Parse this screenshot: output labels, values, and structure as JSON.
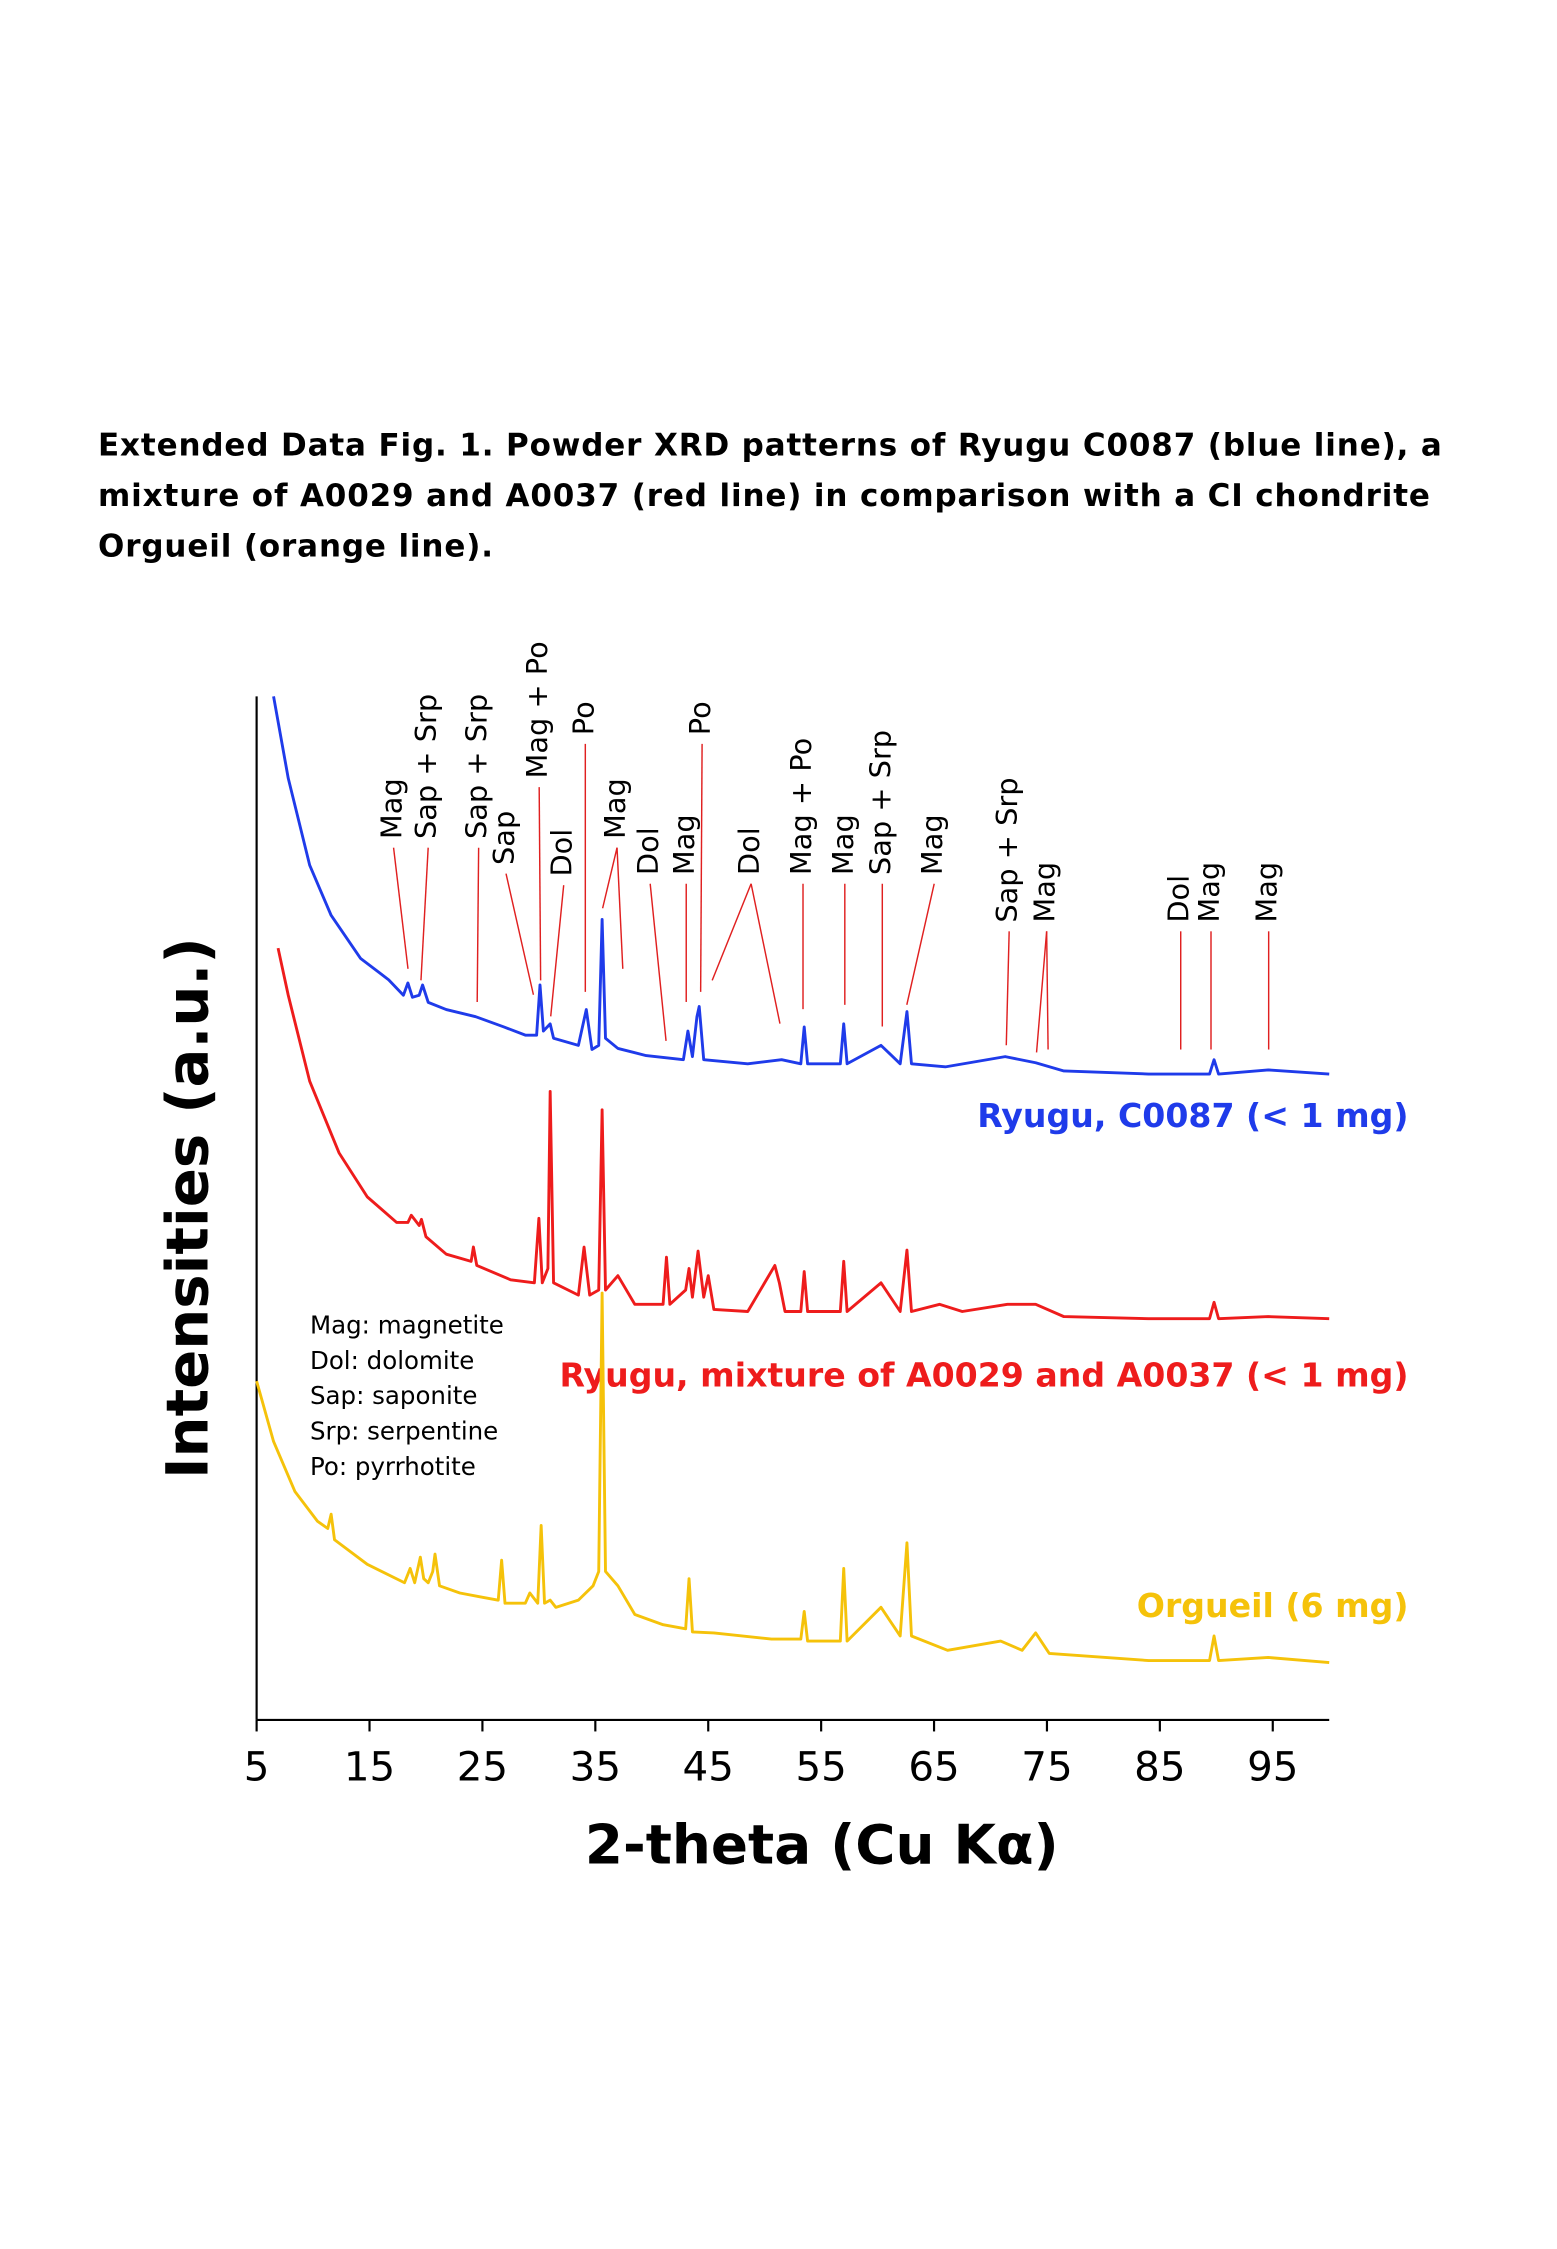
{
  "chart_data": {
    "type": "line",
    "caption_lines": [
      "Extended Data Fig. 1. Powder XRD patterns of Ryugu C0087 (blue line), a",
      "mixture of A0029 and A0037 (red line) in comparison with a CI chondrite",
      "Orgueil (orange line)."
    ],
    "x_label": "2-theta (Cu Kα)",
    "y_label": "Intensities (a.u.)",
    "xlim": [
      5,
      100
    ],
    "xticks": [
      5,
      15,
      25,
      35,
      45,
      55,
      65,
      75,
      85,
      95
    ],
    "ylim": [
      0,
      100
    ],
    "series": [
      {
        "name": "Ryugu, C0087 (< 1 mg)",
        "color": "#1f3bea",
        "x": [
          6.5,
          7.8,
          9.7,
          11.6,
          14.2,
          16.7,
          18.0,
          18.4,
          18.8,
          19.4,
          19.7,
          20.2,
          21.8,
          24.4,
          26.9,
          28.8,
          29.8,
          30.1,
          30.4,
          31.0,
          31.3,
          33.5,
          34.2,
          34.7,
          35.3,
          35.6,
          35.9,
          37.0,
          39.5,
          42.8,
          43.2,
          43.6,
          44.0,
          44.2,
          44.6,
          48.5,
          51.5,
          53.2,
          53.5,
          53.8,
          56.7,
          57.0,
          57.3,
          60.3,
          62.0,
          62.6,
          63.0,
          66.0,
          71.3,
          74.0,
          76.5,
          84.0,
          89.4,
          89.8,
          90.2,
          94.6,
          100.0
        ],
        "values": [
          100,
          92,
          83.5,
          78.6,
          74.4,
          72.3,
          70.8,
          72,
          70.6,
          70.8,
          71.8,
          70.1,
          69.4,
          68.7,
          67.7,
          66.9,
          66.9,
          71.8,
          67.3,
          68,
          66.6,
          65.9,
          69.4,
          65.5,
          65.9,
          78.2,
          66.6,
          65.6,
          64.9,
          64.5,
          67.3,
          64.8,
          68.7,
          69.7,
          64.5,
          64.1,
          64.5,
          64.1,
          67.7,
          64.1,
          64.1,
          68,
          64.1,
          65.9,
          64.1,
          69.2,
          64.1,
          63.8,
          64.8,
          64.2,
          63.4,
          63.1,
          63.1,
          64.5,
          63.1,
          63.5,
          63.1
        ]
      },
      {
        "name": "Ryugu, mixture of A0029 and A0037 (< 1 mg)",
        "color": "#ee1c1c",
        "x": [
          6.9,
          7.8,
          9.7,
          12.3,
          14.8,
          17.4,
          18.4,
          18.7,
          19.4,
          19.6,
          20.0,
          21.8,
          24.0,
          24.2,
          24.5,
          27.5,
          29.6,
          30.0,
          30.3,
          30.8,
          31.0,
          31.3,
          33.5,
          34.0,
          34.5,
          35.3,
          35.6,
          35.9,
          37.0,
          38.5,
          41.0,
          41.3,
          41.6,
          43.0,
          43.3,
          43.6,
          44.1,
          44.6,
          45.0,
          45.5,
          48.5,
          50.9,
          51.3,
          51.8,
          53.2,
          53.5,
          53.8,
          56.7,
          57.0,
          57.3,
          60.3,
          62.0,
          62.6,
          63.0,
          65.5,
          67.5,
          71.5,
          74.0,
          76.5,
          84.0,
          89.4,
          89.8,
          90.2,
          94.6,
          100
        ],
        "values": [
          75.4,
          70.8,
          62.4,
          55.4,
          51.1,
          48.6,
          48.6,
          49.3,
          48.3,
          48.9,
          47.2,
          45.5,
          44.8,
          46.2,
          44.4,
          43.0,
          42.7,
          49.0,
          42.7,
          44.1,
          61.4,
          42.7,
          41.5,
          46.2,
          41.5,
          42.0,
          59.6,
          42.0,
          43.4,
          40.6,
          40.6,
          45.2,
          40.6,
          42.0,
          44.1,
          41.3,
          45.8,
          41.3,
          43.4,
          40.1,
          39.9,
          44.4,
          42.7,
          39.9,
          39.9,
          43.8,
          39.9,
          39.9,
          44.8,
          39.9,
          42.7,
          39.9,
          45.9,
          39.9,
          40.6,
          39.9,
          40.6,
          40.6,
          39.4,
          39.2,
          39.2,
          40.8,
          39.2,
          39.4,
          39.2
        ]
      },
      {
        "name": "Orgueil (6 mg)",
        "color": "#f5c20a",
        "x": [
          5.0,
          6.5,
          8.4,
          10.4,
          11.3,
          11.6,
          11.9,
          14.8,
          18.1,
          18.6,
          19.0,
          19.5,
          19.8,
          20.2,
          20.6,
          20.8,
          21.2,
          23.0,
          24.9,
          26.4,
          26.7,
          27.0,
          28.8,
          29.2,
          29.9,
          30.2,
          30.5,
          31.0,
          31.5,
          33.5,
          34.8,
          35.3,
          35.6,
          35.9,
          37.0,
          38.5,
          41.0,
          43.0,
          43.3,
          43.6,
          45.5,
          50.6,
          53.2,
          53.5,
          53.8,
          56.7,
          57.0,
          57.3,
          60.3,
          62.0,
          62.6,
          63.0,
          66.2,
          70.9,
          72.8,
          74.0,
          75.2,
          84.0,
          89.4,
          89.8,
          90.2,
          94.6,
          100
        ],
        "values": [
          33.1,
          27.2,
          22.3,
          19.4,
          18.7,
          20.1,
          17.6,
          15.2,
          13.4,
          14.8,
          13.4,
          15.9,
          13.8,
          13.4,
          14.5,
          16.2,
          13.1,
          12.4,
          12.0,
          11.7,
          15.6,
          11.4,
          11.4,
          12.4,
          11.4,
          19.0,
          11.4,
          11.7,
          11.0,
          11.7,
          13.1,
          14.5,
          41.7,
          14.5,
          13.1,
          10.3,
          9.3,
          8.9,
          13.8,
          8.6,
          8.5,
          7.9,
          7.9,
          10.6,
          7.7,
          7.7,
          14.8,
          7.7,
          11.0,
          8.2,
          17.3,
          8.2,
          6.8,
          7.7,
          6.8,
          8.5,
          6.5,
          5.8,
          5.8,
          8.2,
          5.8,
          6.1,
          5.6
        ]
      }
    ],
    "key_lines": [
      "Mag: magnetite",
      "Dol: dolomite",
      "Sap: saponite",
      "Srp: serpentine",
      "Po: pyrrhotite"
    ],
    "peak_labels": [
      "Mag",
      "Sap + Srp",
      "Sap + Srp",
      "Sap",
      "Mag + Po",
      "Dol",
      "Po",
      "Mag",
      "Dol",
      "Mag",
      "Po",
      "Dol",
      "Mag + Po",
      "Mag",
      "Sap + Srp",
      "Mag",
      "Sap + Srp",
      "Mag",
      "Dol",
      "Mag",
      "Mag"
    ]
  }
}
